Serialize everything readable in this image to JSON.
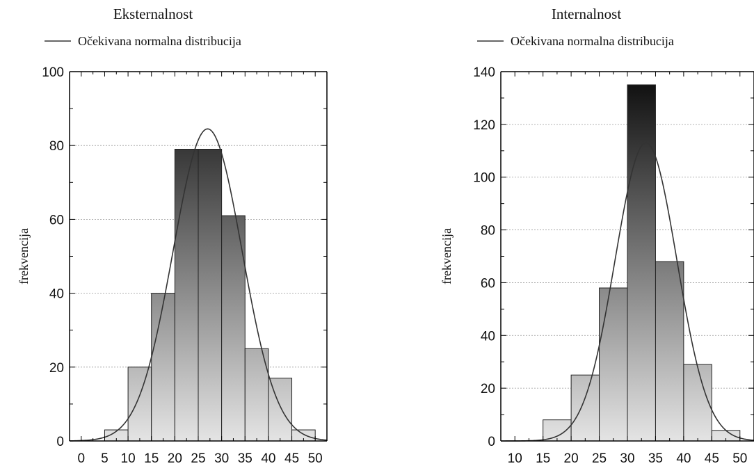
{
  "chart_data": [
    {
      "type": "bar",
      "title": "Eksternalnost",
      "legend": "Očekivana normalna distribucija",
      "ylabel": "frekvencija",
      "xlim": [
        -2.5,
        52.5
      ],
      "ylim": [
        0,
        100
      ],
      "x_ticks": [
        0,
        5,
        10,
        15,
        20,
        25,
        30,
        35,
        40,
        45,
        50
      ],
      "y_ticks": [
        0,
        20,
        40,
        60,
        80,
        100
      ],
      "bins": [
        {
          "from": 5,
          "to": 10,
          "value": 3
        },
        {
          "from": 10,
          "to": 15,
          "value": 20
        },
        {
          "from": 15,
          "to": 20,
          "value": 40
        },
        {
          "from": 20,
          "to": 25,
          "value": 79
        },
        {
          "from": 25,
          "to": 30,
          "value": 79
        },
        {
          "from": 30,
          "to": 35,
          "value": 61
        },
        {
          "from": 35,
          "to": 40,
          "value": 25
        },
        {
          "from": 40,
          "to": 45,
          "value": 17
        },
        {
          "from": 45,
          "to": 50,
          "value": 3
        }
      ],
      "normal_curve": {
        "mean": 27,
        "sd": 7.4,
        "peak": 84.5
      },
      "grid": true
    },
    {
      "type": "bar",
      "title": "Internalnost",
      "legend": "Očekivana normalna distribucija",
      "ylabel": "frekvencija",
      "xlim": [
        7.5,
        52.5
      ],
      "ylim": [
        0,
        140
      ],
      "x_ticks": [
        10,
        15,
        20,
        25,
        30,
        35,
        40,
        45,
        50
      ],
      "y_ticks": [
        0,
        20,
        40,
        60,
        80,
        100,
        120,
        140
      ],
      "bins": [
        {
          "from": 15,
          "to": 20,
          "value": 8
        },
        {
          "from": 20,
          "to": 25,
          "value": 25
        },
        {
          "from": 25,
          "to": 30,
          "value": 58
        },
        {
          "from": 30,
          "to": 35,
          "value": 135
        },
        {
          "from": 35,
          "to": 40,
          "value": 68
        },
        {
          "from": 40,
          "to": 45,
          "value": 29
        },
        {
          "from": 45,
          "to": 50,
          "value": 4
        }
      ],
      "normal_curve": {
        "mean": 33.3,
        "sd": 5.5,
        "peak": 113
      },
      "grid": true
    }
  ]
}
